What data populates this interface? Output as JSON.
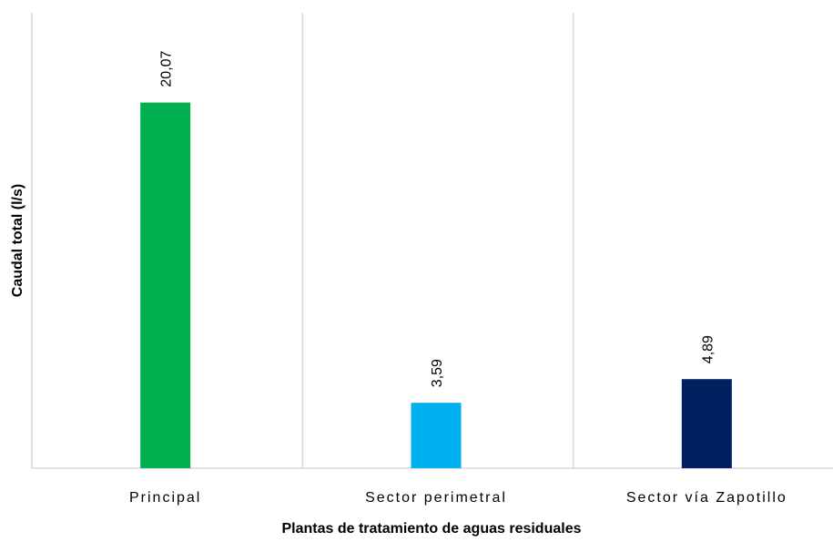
{
  "chart_data": {
    "type": "bar",
    "x_label": "Plantas de tratamiento de aguas residuales",
    "y_label": "Caudal total (l/s)",
    "categories": [
      "Principal",
      "Sector perimetral",
      "Sector vía Zapotillo"
    ],
    "values": [
      20.07,
      3.59,
      4.89
    ],
    "value_labels": [
      "20,07",
      "3,59",
      "4,89"
    ],
    "colors": [
      "#00b050",
      "#00b0f0",
      "#002060"
    ],
    "ylim": [
      0,
      25
    ]
  }
}
